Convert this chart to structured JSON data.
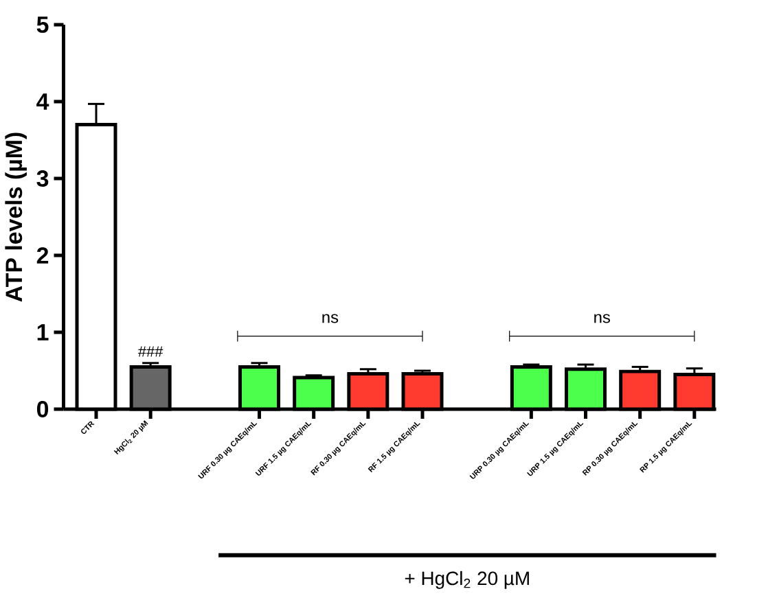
{
  "chart_data": {
    "type": "bar",
    "ylabel": "ATP levels (µM)",
    "categories": [
      "CTR",
      "HgCl$_{2}$ 20 µM",
      null,
      "URF 0.30 µg CAEq/mL",
      "URF 1.5 µg CAEq/mL",
      "RF 0.30 µg CAEq/mL",
      "RF 1.5 µg CAEq/mL",
      null,
      "URP 0.30 µg CAEq/mL",
      "URP 1.5 µg CAEq/mL",
      "RP 0.30 µg CAEq/mL",
      "RP 1.5 µg CAEq/mL"
    ],
    "values": [
      3.7,
      0.55,
      null,
      0.55,
      0.41,
      0.46,
      0.46,
      null,
      0.55,
      0.52,
      0.49,
      0.45
    ],
    "errors": [
      [
        3.7,
        3.97
      ],
      [
        0.55,
        0.6
      ],
      null,
      [
        0.55,
        0.6
      ],
      [
        0.41,
        0.44
      ],
      [
        0.46,
        0.52
      ],
      [
        0.46,
        0.5
      ],
      null,
      [
        0.55,
        0.58
      ],
      [
        0.52,
        0.58
      ],
      [
        0.49,
        0.55
      ],
      [
        0.45,
        0.53
      ]
    ],
    "colors": [
      "#ffffff",
      "#666666",
      null,
      "#4dff4d",
      "#4dff4d",
      "#ff3b30",
      "#ff3b30",
      null,
      "#4dff4d",
      "#4dff4d",
      "#ff3b30",
      "#ff3b30"
    ],
    "ylim": [
      0,
      5
    ],
    "yticks": [
      0,
      1,
      2,
      3,
      4,
      5
    ],
    "grid": false,
    "annotations": [
      "###",
      "ns",
      "ns",
      "+ HgCl$_{2}$ 20 µM"
    ]
  }
}
